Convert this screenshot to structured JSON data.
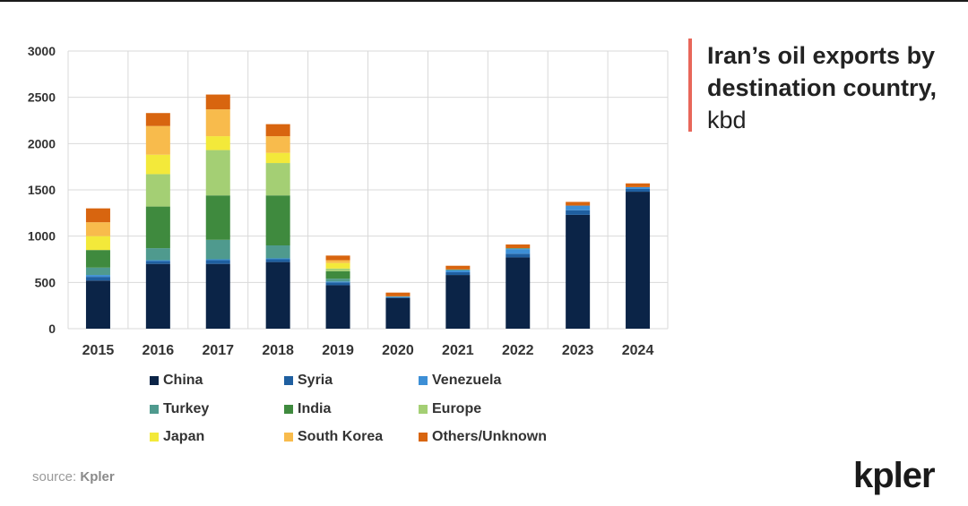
{
  "title": {
    "bold": "Iran’s oil exports by destination country,",
    "unit": "kbd"
  },
  "source": {
    "prefix": "source:",
    "name": "Kpler"
  },
  "logo": "kpler",
  "colors": {
    "China": "#0b2447",
    "Syria": "#1f5fa0",
    "Venezuela": "#3d8fd6",
    "Turkey": "#4f9a8e",
    "India": "#3f8a3e",
    "Europe": "#a4cf74",
    "Japan": "#f3e93a",
    "South Korea": "#f8bb4c",
    "Others/Unknown": "#d8650f",
    "accent": "#e8675a"
  },
  "chart_data": {
    "type": "bar",
    "stacked": true,
    "title": "Iran’s oil exports by destination country, kbd",
    "xlabel": "",
    "ylabel": "",
    "ylim": [
      0,
      3000
    ],
    "yticks": [
      "0",
      "500",
      "1000",
      "1500",
      "2000",
      "2500",
      "3000"
    ],
    "grid": true,
    "legend": "bottom",
    "categories": [
      "2015",
      "2016",
      "2017",
      "2018",
      "2019",
      "2020",
      "2021",
      "2022",
      "2023",
      "2024"
    ],
    "series": [
      {
        "name": "China",
        "values": [
          520,
          700,
          700,
          720,
          470,
          330,
          580,
          770,
          1230,
          1480
        ]
      },
      {
        "name": "Syria",
        "values": [
          40,
          30,
          40,
          30,
          30,
          10,
          30,
          40,
          50,
          30
        ]
      },
      {
        "name": "Venezuela",
        "values": [
          20,
          10,
          10,
          10,
          10,
          5,
          20,
          50,
          50,
          20
        ]
      },
      {
        "name": "Turkey",
        "values": [
          80,
          130,
          210,
          140,
          30,
          5,
          10,
          10,
          0,
          0
        ]
      },
      {
        "name": "India",
        "values": [
          190,
          450,
          480,
          540,
          80,
          0,
          0,
          0,
          0,
          0
        ]
      },
      {
        "name": "Europe",
        "values": [
          0,
          350,
          490,
          350,
          30,
          0,
          0,
          0,
          0,
          0
        ]
      },
      {
        "name": "Japan",
        "values": [
          150,
          210,
          150,
          110,
          60,
          0,
          0,
          0,
          0,
          0
        ]
      },
      {
        "name": "South Korea",
        "values": [
          150,
          310,
          290,
          180,
          30,
          0,
          0,
          0,
          0,
          0
        ]
      },
      {
        "name": "Others/Unknown",
        "values": [
          150,
          140,
          160,
          130,
          50,
          40,
          40,
          40,
          40,
          40
        ]
      }
    ]
  }
}
